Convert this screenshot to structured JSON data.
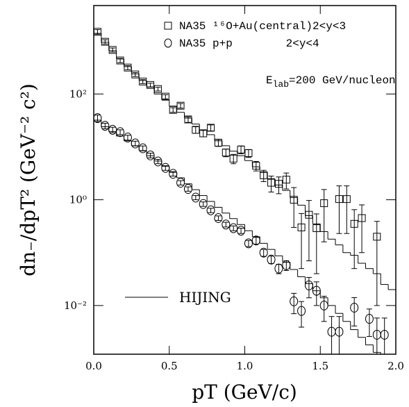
{
  "chart_data": {
    "type": "scatter",
    "log_y": true,
    "xlabel": "pT (GeV/c)",
    "ylabel": "dn₋/dpT² (GeV⁻² c²)",
    "annotation": {
      "text": "E",
      "subscript": "lab",
      "rest": "=200 GeV/nucleon"
    },
    "xlim": [
      0,
      2
    ],
    "xticks": [
      {
        "value": 0,
        "label": "0.0"
      },
      0.5,
      {
        "value": 1,
        "label": "1.0"
      },
      1.5,
      {
        "value": 2,
        "label": "2.0"
      }
    ],
    "ylim": [
      0.0012,
      4700
    ],
    "yticks": [
      {
        "value": 0.01,
        "label": "10⁻²"
      },
      {
        "value": 1,
        "label": "10⁰"
      },
      {
        "value": 100,
        "label": "10²"
      }
    ],
    "color": "#000000",
    "series": [
      {
        "name": "NA35 ¹⁶O+Au(central)2<y<3",
        "marker": "square",
        "x": [
          0.025,
          0.075,
          0.125,
          0.175,
          0.225,
          0.275,
          0.325,
          0.375,
          0.425,
          0.475,
          0.525,
          0.575,
          0.625,
          0.675,
          0.725,
          0.775,
          0.825,
          0.875,
          0.925,
          0.975,
          1.025,
          1.075,
          1.125,
          1.175,
          1.225,
          1.275,
          1.325,
          1.375,
          1.425,
          1.475,
          1.525,
          1.625,
          1.675,
          1.725,
          1.775,
          1.875
        ],
        "values": [
          1500,
          970,
          680,
          430,
          316,
          234,
          172,
          148,
          124,
          89,
          50,
          60,
          33,
          21,
          18,
          23,
          12,
          7.8,
          6,
          8.9,
          7.6,
          4.4,
          2.9,
          2.1,
          2.0,
          2.4,
          1.0,
          0.3,
          0.52,
          0.29,
          0.86,
          1.03,
          1.03,
          0.35,
          0.45,
          0.2
        ],
        "errors": [
          150,
          90,
          60,
          40,
          28,
          20,
          15,
          12,
          10,
          8,
          5,
          6,
          4,
          3,
          2.5,
          3,
          1.8,
          1.3,
          1.2,
          1.5,
          1.3,
          0.9,
          0.7,
          0.7,
          0.7,
          0.8,
          0.7,
          0.25,
          0.45,
          0.25,
          0.7,
          0.8,
          0.8,
          0.3,
          0.35,
          0.19
        ]
      },
      {
        "name": "NA35 p+p        2<y<4",
        "marker": "circle",
        "x": [
          0.025,
          0.075,
          0.125,
          0.175,
          0.225,
          0.275,
          0.325,
          0.375,
          0.425,
          0.475,
          0.525,
          0.575,
          0.625,
          0.675,
          0.725,
          0.775,
          0.825,
          0.875,
          0.925,
          0.975,
          1.025,
          1.075,
          1.125,
          1.175,
          1.225,
          1.275,
          1.325,
          1.375,
          1.425,
          1.475,
          1.525,
          1.575,
          1.625,
          1.725,
          1.825,
          1.875,
          1.925
        ],
        "values": [
          35,
          25,
          21,
          19,
          15,
          11.6,
          9.4,
          6.9,
          5.3,
          4.0,
          3.1,
          2.1,
          1.6,
          1.1,
          0.83,
          0.63,
          0.45,
          0.34,
          0.29,
          0.26,
          0.15,
          0.17,
          0.1,
          0.074,
          0.05,
          0.058,
          0.012,
          0.0079,
          0.024,
          0.019,
          0.01,
          0.0032,
          0.0032,
          0.0091,
          0.0056,
          0.0028,
          0.0028
        ],
        "errors": [
          5,
          3,
          2.5,
          2,
          1.6,
          1.2,
          1,
          0.7,
          0.5,
          0.4,
          0.3,
          0.2,
          0.15,
          0.1,
          0.08,
          0.06,
          0.045,
          0.035,
          0.03,
          0.03,
          0.02,
          0.025,
          0.015,
          0.012,
          0.01,
          0.012,
          0.005,
          0.004,
          0.01,
          0.009,
          0.005,
          0.003,
          0.003,
          0.005,
          0.003,
          0.003,
          0.003
        ]
      }
    ],
    "hijing": {
      "name": "HIJING",
      "bins": [
        0,
        0.05,
        0.1,
        0.15,
        0.2,
        0.25,
        0.3,
        0.35,
        0.4,
        0.45,
        0.5,
        0.55,
        0.6,
        0.65,
        0.7,
        0.75,
        0.8,
        0.85,
        0.9,
        0.95,
        1,
        1.05,
        1.1,
        1.15,
        1.2,
        1.25,
        1.3,
        1.35,
        1.4,
        1.45,
        1.5,
        1.55,
        1.6,
        1.65,
        1.7,
        1.75,
        1.8,
        1.85,
        1.9,
        1.95,
        2
      ],
      "series": [
        [
          1400,
          950,
          660,
          460,
          330,
          240,
          180,
          135,
          100,
          78,
          59,
          45,
          35,
          27,
          21,
          17,
          13,
          10.5,
          8.3,
          6.8,
          5.5,
          4.2,
          3.3,
          2.5,
          1.9,
          1.5,
          1.1,
          0.79,
          0.5,
          0.35,
          0.25,
          0.18,
          0.14,
          0.1,
          0.089,
          0.063,
          0.05,
          0.04,
          0.025,
          0.02
        ],
        [
          32,
          24,
          19.5,
          16,
          13,
          10.5,
          8.5,
          6.8,
          5.4,
          4.3,
          3.3,
          2.6,
          2.0,
          1.55,
          1.2,
          0.93,
          0.72,
          0.56,
          0.44,
          0.34,
          0.26,
          0.2,
          0.15,
          0.115,
          0.087,
          0.066,
          0.048,
          0.035,
          0.026,
          0.019,
          0.014,
          0.01,
          0.0071,
          0.005,
          0.0035,
          0.0025,
          0.0018,
          0.0013,
          0.0012,
          0.0012
        ]
      ]
    }
  }
}
